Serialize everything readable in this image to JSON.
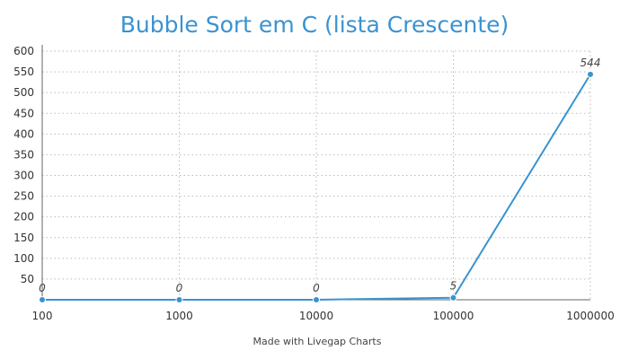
{
  "chart_data": {
    "type": "line",
    "title": "Bubble Sort em C (lista Crescente)",
    "categories": [
      "100",
      "1000",
      "10000",
      "100000",
      "1000000"
    ],
    "values": [
      0,
      0,
      0,
      5,
      544
    ],
    "data_labels": [
      "0",
      "0",
      "0",
      "5",
      "544"
    ],
    "yticks": [
      "50",
      "100",
      "150",
      "200",
      "250",
      "300",
      "350",
      "400",
      "450",
      "500",
      "550",
      "600"
    ],
    "ylim": [
      0,
      600
    ],
    "grid": true,
    "line_color": "#3a93d0"
  },
  "footer": {
    "credit": "Made with Livegap Charts"
  }
}
